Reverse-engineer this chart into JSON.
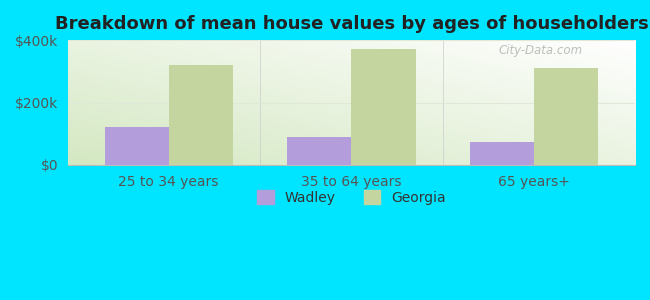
{
  "title": "Breakdown of mean house values by ages of householders",
  "categories": [
    "25 to 34 years",
    "35 to 64 years",
    "65 years+"
  ],
  "wadley_values": [
    120000,
    90000,
    75000
  ],
  "georgia_values": [
    320000,
    370000,
    310000
  ],
  "wadley_color": "#b39ddb",
  "georgia_color": "#c5d5a0",
  "background_outer": "#00e5ff",
  "background_inner_topleft": "#d4e8c2",
  "background_inner_bottomright": "#ffffff",
  "ylim": [
    0,
    400000
  ],
  "yticks": [
    0,
    200000,
    400000
  ],
  "ytick_labels": [
    "$0",
    "$200k",
    "$400k"
  ],
  "bar_width": 0.35,
  "legend_labels": [
    "Wadley",
    "Georgia"
  ],
  "title_fontsize": 13,
  "tick_fontsize": 10,
  "legend_fontsize": 10,
  "watermark": "City-Data.com",
  "grid_color": "#e0e8d8",
  "xlim": [
    -0.55,
    2.55
  ]
}
